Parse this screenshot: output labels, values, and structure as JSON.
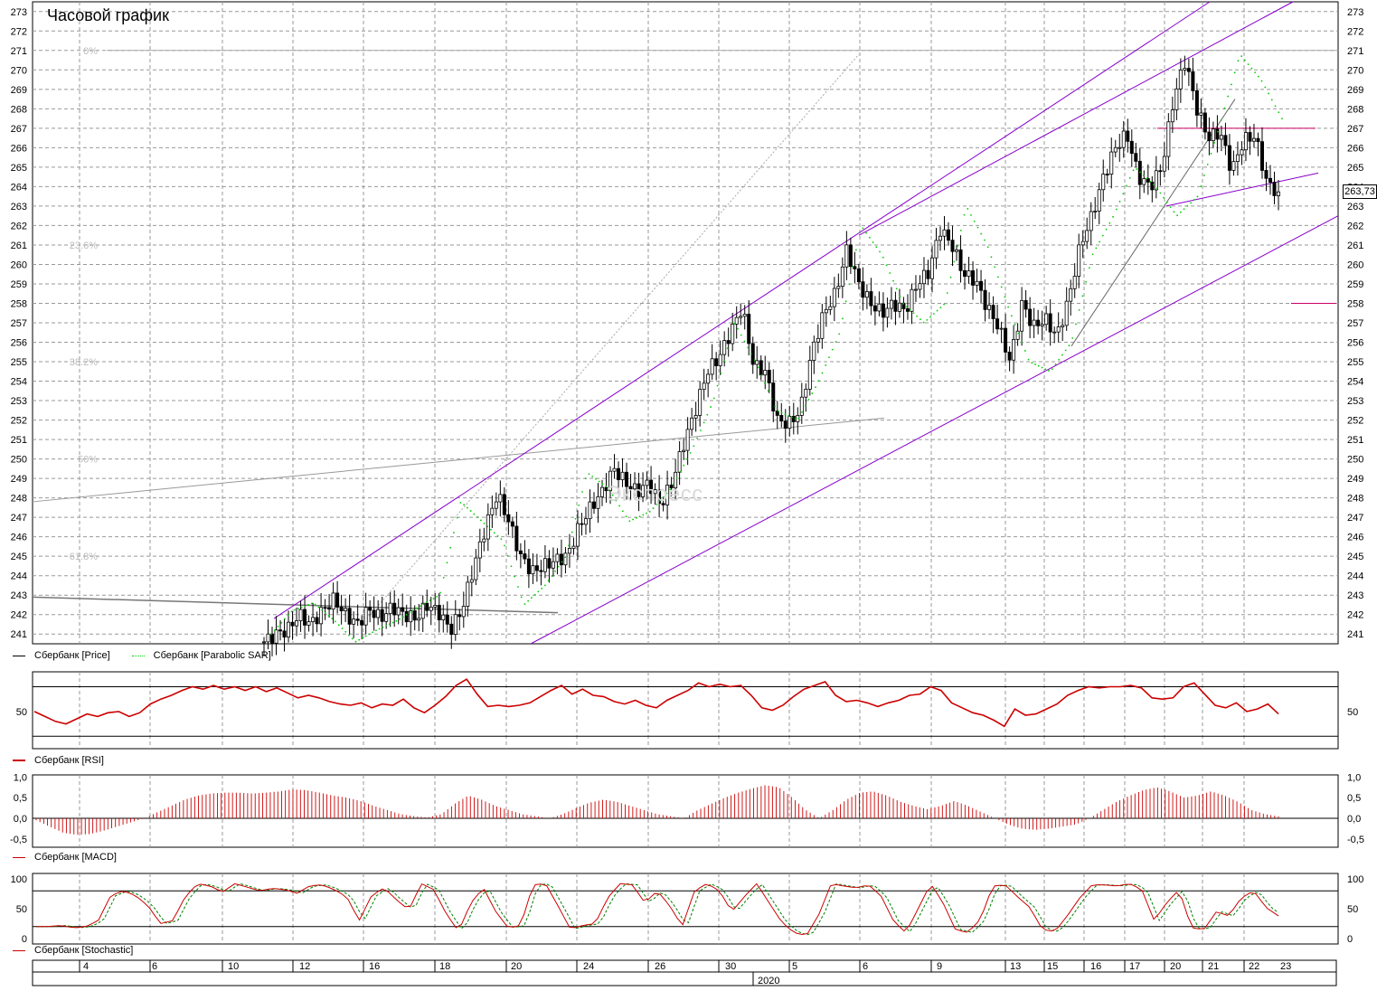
{
  "chart_title": "Часовой график",
  "watermark": "Экспресс",
  "last_price_label": "263,73",
  "legends": {
    "price": "Сбербанк [Price]",
    "sar": "Сбербанк [Parabolic SAR]",
    "rsi": "Сбербанк [RSI]",
    "macd": "Сбербанк [MACD]",
    "stoch": "Сбербанк [Stochastic]"
  },
  "x_ticks": [
    "4",
    "6",
    "10",
    "12",
    "16",
    "18",
    "20",
    "24",
    "26",
    "30",
    "5",
    "6",
    "9",
    "13",
    "15",
    "16",
    "17",
    "20",
    "21",
    "22",
    "23"
  ],
  "year_label": "2020",
  "fib_labels": [
    "0%",
    "23.6%",
    "38.2%",
    "50%",
    "61.8%"
  ],
  "colors": {
    "candle": "#000000",
    "sar": "#00cc00",
    "channel": "#8800cc",
    "level": "#cc0066",
    "rsi": "#cc0000",
    "macd": "#cc0000",
    "stoch_k": "#008000",
    "stoch_d": "#cc0000",
    "grid": "#999999"
  },
  "chart_data": [
    {
      "type": "candlestick",
      "title": "Часовой график",
      "series_name": "Сбербанк [Price]",
      "ylim": [
        240.5,
        273.5
      ],
      "y_ticks": [
        241,
        242,
        243,
        244,
        245,
        246,
        247,
        248,
        249,
        250,
        251,
        252,
        253,
        254,
        255,
        256,
        257,
        258,
        259,
        260,
        261,
        262,
        263,
        264,
        265,
        266,
        267,
        268,
        269,
        270,
        271,
        272,
        273
      ],
      "last_price": 263.73,
      "close_path": [
        240.6,
        241.0,
        241.2,
        242.0,
        241.5,
        242.2,
        242.8,
        242.0,
        241.5,
        242.3,
        241.8,
        242.4,
        242.0,
        241.8,
        242.5,
        242.1,
        241.2,
        242.3,
        244.5,
        246.5,
        248.2,
        246.8,
        245.0,
        244.2,
        244.5,
        244.8,
        245.0,
        246.5,
        247.5,
        248.3,
        249.5,
        248.8,
        248.3,
        248.8,
        247.6,
        248.8,
        250.8,
        252.5,
        254.5,
        255.2,
        256.5,
        257.8,
        254.8,
        254.5,
        252.0,
        251.8,
        252.5,
        255.5,
        257.5,
        258.5,
        260.8,
        259.0,
        258.0,
        257.5,
        258.0,
        257.6,
        259.0,
        259.6,
        261.8,
        261.0,
        259.5,
        259.2,
        257.8,
        256.8,
        255.0,
        258.0,
        256.8,
        257.2,
        256.3,
        258.2,
        261.0,
        262.5,
        264.5,
        266.0,
        266.7,
        264.5,
        264.0,
        265.0,
        268.5,
        270.5,
        268.0,
        266.5,
        266.8,
        264.8,
        266.4,
        266.6,
        264.2,
        263.7
      ],
      "sar_path": [
        241.0,
        242.2,
        242.6,
        241.7,
        240.6,
        241.2,
        241.7,
        242.4,
        243.0,
        247.8,
        246.8,
        245.8,
        242.5,
        243.5,
        245.0,
        249.3,
        248.5,
        246.8,
        247.3,
        248.5,
        250.5,
        253.0,
        257.0,
        255.0,
        252.5,
        252.0,
        254.0,
        256.5,
        262.0,
        260.5,
        258.0,
        257.0,
        258.0,
        263.0,
        261.0,
        257.8,
        255.0,
        254.5,
        256.0,
        260.5,
        262.5,
        265.0,
        264.0,
        262.5,
        263.5,
        267.0,
        270.8,
        269.5,
        267.5
      ],
      "horizontal_levels": [
        271.0,
        267.0,
        258.0
      ],
      "fibonacci_levels": {
        "0%": 271.0,
        "23.6%": 261.0,
        "38.2%": 255.0,
        "50%": 250.0,
        "61.8%": 245.0
      }
    },
    {
      "type": "line",
      "series_name": "Сбербанк [RSI]",
      "ylim": [
        20,
        82
      ],
      "y_ticks": [
        50
      ],
      "reference_lines": [
        30,
        70
      ],
      "values": [
        50,
        46,
        42,
        40,
        44,
        48,
        46,
        49,
        50,
        46,
        49,
        56,
        60,
        63,
        67,
        70,
        68,
        71,
        68,
        70,
        67,
        70,
        66,
        69,
        65,
        61,
        63,
        61,
        58,
        56,
        55,
        57,
        53,
        56,
        55,
        60,
        53,
        49,
        55,
        62,
        71,
        76,
        64,
        54,
        55,
        54,
        55,
        57,
        62,
        67,
        71,
        64,
        68,
        63,
        62,
        58,
        56,
        59,
        55,
        53,
        59,
        63,
        67,
        73,
        70,
        72,
        70,
        71,
        63,
        53,
        51,
        55,
        62,
        68,
        71,
        74,
        63,
        58,
        59,
        57,
        54,
        57,
        59,
        63,
        64,
        70,
        67,
        57,
        53,
        49,
        47,
        43,
        38,
        52,
        47,
        48,
        52,
        56,
        63,
        67,
        70,
        69,
        70,
        70,
        71,
        69,
        61,
        60,
        61,
        70,
        73,
        64,
        55,
        53,
        57,
        50,
        52,
        56,
        48
      ]
    },
    {
      "type": "bar",
      "series_name": "Сбербанк [MACD]",
      "ylim": [
        -0.7,
        1.05
      ],
      "y_ticks": [
        1.0,
        0.5,
        0.0,
        -0.5
      ],
      "values": [
        -0.05,
        -0.2,
        -0.35,
        -0.4,
        -0.38,
        -0.3,
        -0.2,
        -0.1,
        0.0,
        0.15,
        0.3,
        0.45,
        0.55,
        0.6,
        0.62,
        0.62,
        0.6,
        0.62,
        0.65,
        0.7,
        0.68,
        0.62,
        0.55,
        0.5,
        0.42,
        0.3,
        0.2,
        0.1,
        0.05,
        0.02,
        0.1,
        0.35,
        0.55,
        0.45,
        0.3,
        0.2,
        0.1,
        0.05,
        0.0,
        0.1,
        0.25,
        0.38,
        0.45,
        0.4,
        0.3,
        0.2,
        0.1,
        0.05,
        0.0,
        0.2,
        0.35,
        0.5,
        0.62,
        0.72,
        0.8,
        0.75,
        0.5,
        0.2,
        0.0,
        0.2,
        0.45,
        0.62,
        0.65,
        0.55,
        0.4,
        0.3,
        0.22,
        0.3,
        0.42,
        0.3,
        0.15,
        0.0,
        -0.15,
        -0.25,
        -0.28,
        -0.25,
        -0.2,
        -0.15,
        0.0,
        0.2,
        0.4,
        0.55,
        0.68,
        0.75,
        0.65,
        0.5,
        0.55,
        0.65,
        0.55,
        0.4,
        0.2,
        0.1,
        0.05
      ]
    },
    {
      "type": "line",
      "series_name": "Сбербанк [Stochastic]",
      "ylim": [
        0,
        100
      ],
      "y_ticks": [
        100,
        50,
        0
      ],
      "reference_lines": [
        20,
        80
      ],
      "values": [
        20,
        20,
        22,
        18,
        20,
        30,
        72,
        80,
        72,
        55,
        25,
        30,
        70,
        92,
        88,
        78,
        92,
        86,
        80,
        84,
        82,
        76,
        88,
        90,
        82,
        70,
        30,
        72,
        85,
        65,
        48,
        92,
        82,
        42,
        12,
        60,
        85,
        45,
        18,
        22,
        90,
        92,
        55,
        16,
        22,
        25,
        68,
        92,
        90,
        60,
        80,
        55,
        20,
        80,
        92,
        80,
        45,
        70,
        92,
        60,
        28,
        10,
        5,
        40,
        92,
        88,
        85,
        90,
        72,
        30,
        10,
        50,
        92,
        60,
        15,
        10,
        32,
        88,
        90,
        70,
        52,
        15,
        12,
        38,
        68,
        90,
        90,
        88,
        92,
        82,
        30,
        60,
        82,
        18,
        15,
        45,
        38,
        68,
        80,
        52,
        38
      ]
    }
  ]
}
